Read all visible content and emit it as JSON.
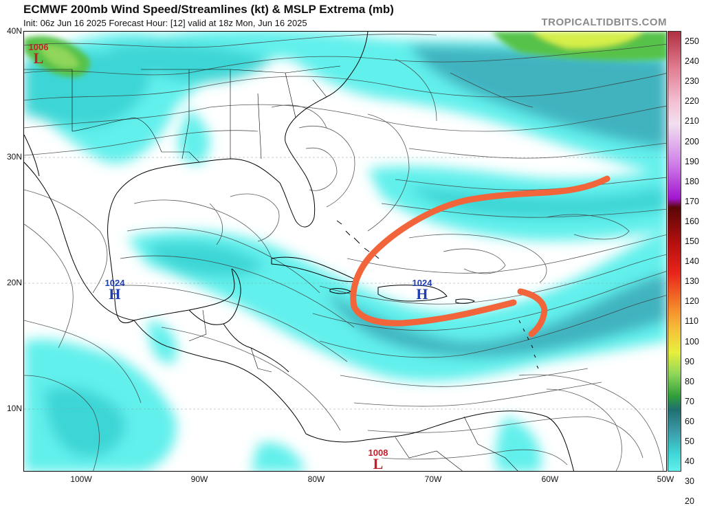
{
  "header": {
    "title": "ECMWF 200mb Wind Speed/Streamlines (kt) & MSLP Extrema (mb)",
    "subtitle": "Init: 06z Jun 16 2025   Forecast Hour: [12]   valid at 18z Mon, Jun 16 2025",
    "brand": "TROPICALTIDBITS.COM"
  },
  "axes": {
    "lat_labels": [
      "40N",
      "30N",
      "20N",
      "10N"
    ],
    "lon_labels": [
      "100W",
      "90W",
      "80W",
      "70W",
      "60W",
      "50W"
    ]
  },
  "colorbar": {
    "labels": [
      "250",
      "240",
      "230",
      "220",
      "210",
      "200",
      "190",
      "180",
      "170",
      "160",
      "150",
      "140",
      "130",
      "120",
      "110",
      "100",
      "90",
      "80",
      "70",
      "60",
      "50",
      "40",
      "30",
      "20"
    ],
    "colors": {
      "cyan_light": "#62f0ec",
      "cyan": "#3ed6d6",
      "teal": "#3fb3bf",
      "green": "#57c24a",
      "yellow": "#e8ef3c",
      "orange": "#f5a623",
      "red": "#e8251c",
      "darkred": "#7b0b0b",
      "purple": "#a216d0",
      "pink": "#f0a8d0"
    }
  },
  "pressure_extrema": [
    {
      "type": "L",
      "value": "1006",
      "color": "#c41e2a"
    },
    {
      "type": "H",
      "value": "1024",
      "color": "#1f3fb0"
    },
    {
      "type": "H",
      "value": "1024",
      "color": "#1f3fb0"
    },
    {
      "type": "L",
      "value": "1008",
      "color": "#c41e2a"
    }
  ],
  "annotation": {
    "color": "#f2643a",
    "shape": "orange hand-drawn curved arrow"
  }
}
